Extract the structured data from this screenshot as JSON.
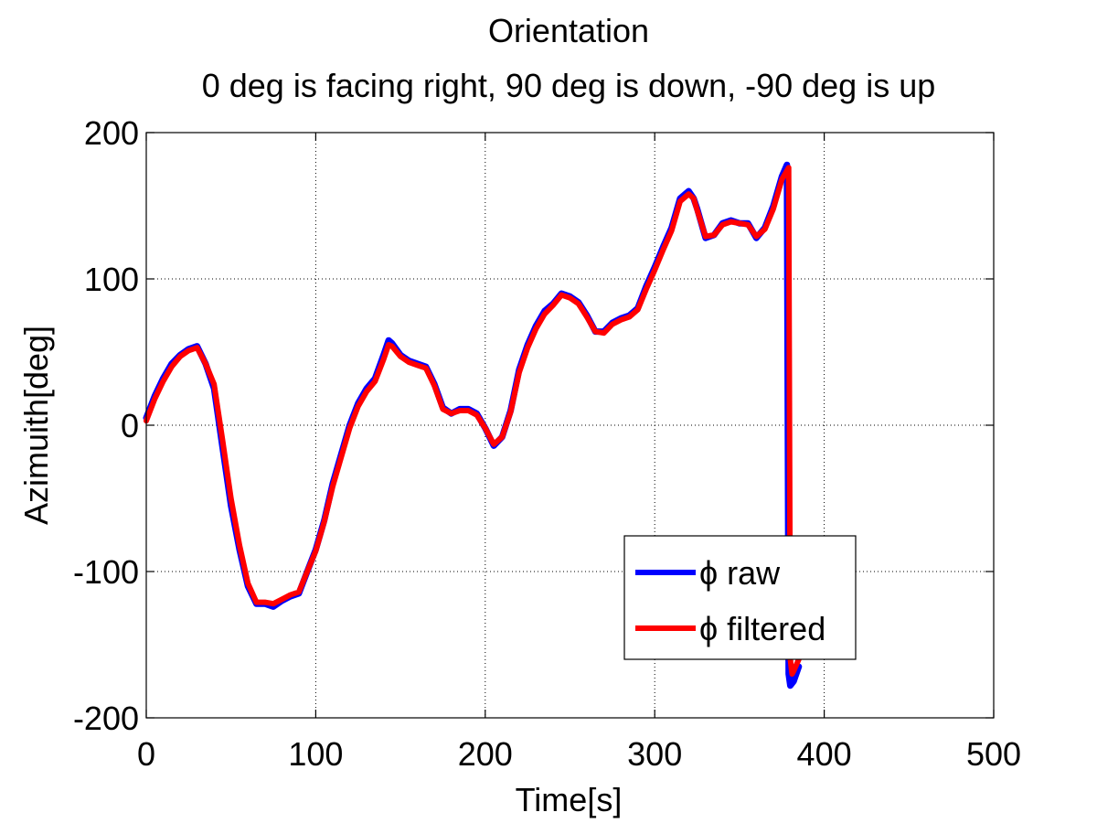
{
  "chart_data": {
    "type": "line",
    "title": "Orientation",
    "subtitle": "0 deg is facing right, 90 deg is down, -90 deg is up",
    "xlabel": "Time[s]",
    "ylabel": "Azimuith[deg]",
    "xlim": [
      0,
      500
    ],
    "ylim": [
      -200,
      200
    ],
    "xticks": [
      0,
      100,
      200,
      300,
      400,
      500
    ],
    "yticks": [
      -200,
      -100,
      0,
      100,
      200
    ],
    "grid": true,
    "legend_position": "bottom-right",
    "series": [
      {
        "name": "ϕ raw",
        "color": "#0000ff",
        "x": [
          0,
          5,
          10,
          15,
          20,
          25,
          30,
          35,
          40,
          45,
          50,
          55,
          60,
          65,
          70,
          75,
          80,
          85,
          90,
          95,
          100,
          105,
          110,
          115,
          120,
          125,
          130,
          135,
          140,
          143,
          145,
          150,
          155,
          160,
          165,
          170,
          175,
          180,
          185,
          190,
          195,
          200,
          205,
          210,
          215,
          220,
          225,
          230,
          235,
          240,
          245,
          250,
          255,
          260,
          265,
          270,
          275,
          280,
          285,
          290,
          295,
          300,
          305,
          310,
          315,
          320,
          323,
          325,
          330,
          335,
          340,
          345,
          350,
          355,
          360,
          365,
          370,
          375,
          378,
          379,
          380,
          382,
          385
        ],
        "y": [
          5,
          20,
          32,
          42,
          48,
          52,
          54,
          42,
          25,
          -15,
          -55,
          -85,
          -110,
          -122,
          -122,
          -124,
          -120,
          -117,
          -115,
          -100,
          -85,
          -65,
          -40,
          -20,
          0,
          15,
          25,
          32,
          48,
          58,
          56,
          48,
          44,
          42,
          40,
          28,
          12,
          8,
          11,
          11,
          8,
          -2,
          -14,
          -8,
          10,
          38,
          55,
          68,
          78,
          83,
          90,
          88,
          84,
          75,
          64,
          64,
          70,
          73,
          75,
          80,
          95,
          108,
          122,
          135,
          155,
          160,
          155,
          148,
          128,
          130,
          138,
          140,
          138,
          138,
          128,
          135,
          150,
          170,
          178,
          -170,
          -178,
          -175,
          -165
        ]
      },
      {
        "name": "ϕ filtered",
        "color": "#ff0000",
        "x": [
          0,
          5,
          10,
          15,
          20,
          25,
          30,
          35,
          40,
          45,
          50,
          55,
          60,
          65,
          70,
          75,
          80,
          85,
          90,
          95,
          100,
          105,
          110,
          115,
          120,
          125,
          130,
          135,
          140,
          143,
          145,
          150,
          155,
          160,
          165,
          170,
          175,
          180,
          185,
          190,
          195,
          200,
          205,
          210,
          215,
          220,
          225,
          230,
          235,
          240,
          245,
          250,
          255,
          260,
          265,
          270,
          275,
          280,
          285,
          290,
          295,
          300,
          305,
          310,
          315,
          320,
          323,
          325,
          330,
          335,
          340,
          345,
          350,
          355,
          360,
          365,
          370,
          375,
          379,
          380,
          381,
          382,
          385
        ],
        "y": [
          3,
          18,
          30,
          40,
          47,
          51,
          53,
          42,
          28,
          -10,
          -50,
          -82,
          -108,
          -121,
          -121,
          -122,
          -119,
          -116,
          -114,
          -100,
          -86,
          -66,
          -42,
          -22,
          -2,
          13,
          23,
          30,
          45,
          55,
          54,
          47,
          43,
          41,
          39,
          27,
          11,
          8,
          10,
          10,
          7,
          -2,
          -13,
          -8,
          9,
          36,
          53,
          66,
          76,
          82,
          89,
          87,
          83,
          74,
          64,
          63,
          69,
          72,
          74,
          79,
          93,
          106,
          120,
          133,
          153,
          158,
          155,
          147,
          129,
          130,
          137,
          139,
          138,
          137,
          129,
          134,
          148,
          168,
          176,
          -160,
          -170,
          -168,
          -160
        ]
      }
    ]
  }
}
